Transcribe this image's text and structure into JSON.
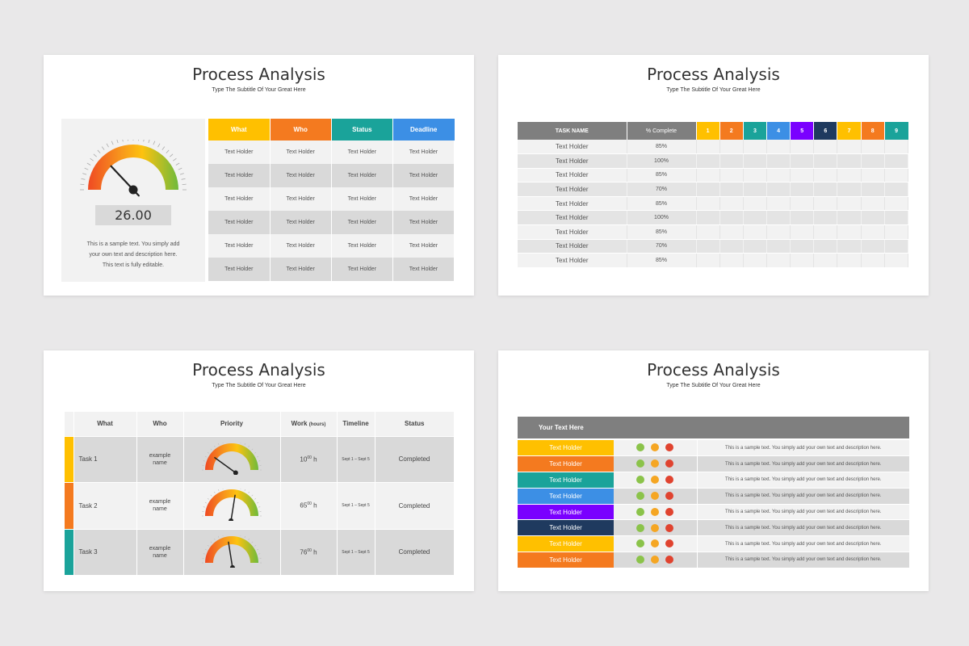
{
  "colors": {
    "yellow": "#ffc000",
    "orange": "#f47a1f",
    "teal": "#1aa39a",
    "blue": "#3c8fe5",
    "purple": "#7a00ff",
    "navy": "#1f3a5f",
    "header_gray": "#7f7f7f",
    "green_dot": "#8bc34a",
    "amber_dot": "#f5a623",
    "red_dot": "#e0432f"
  },
  "slide1": {
    "title": "Process Analysis",
    "subtitle": "Type The Subtitle Of Your Great Here",
    "gauge": {
      "value_label": "26.00",
      "level_percent": 26
    },
    "description": [
      "This is a sample text. You simply add",
      "your own text and description here.",
      "This text is fully editable."
    ],
    "table": {
      "headers": [
        "What",
        "Who",
        "Status",
        "Deadline"
      ],
      "rows": [
        [
          "Text Holder",
          "Text Holder",
          "Text Holder",
          "Text Holder"
        ],
        [
          "Text Holder",
          "Text Holder",
          "Text Holder",
          "Text Holder"
        ],
        [
          "Text Holder",
          "Text Holder",
          "Text Holder",
          "Text Holder"
        ],
        [
          "Text Holder",
          "Text Holder",
          "Text Holder",
          "Text Holder"
        ],
        [
          "Text Holder",
          "Text Holder",
          "Text Holder",
          "Text Holder"
        ],
        [
          "Text Holder",
          "Text Holder",
          "Text Holder",
          "Text Holder"
        ]
      ]
    }
  },
  "slide2": {
    "title": "Process Analysis",
    "subtitle": "Type The Subtitle Of Your Great Here",
    "headers": {
      "task": "TASK NAME",
      "complete": "% Complete",
      "numbers": [
        "1",
        "2",
        "3",
        "4",
        "5",
        "6",
        "7",
        "8",
        "9"
      ]
    },
    "rows": [
      {
        "name": "Text Holder",
        "pct": "85%"
      },
      {
        "name": "Text Holder",
        "pct": "100%"
      },
      {
        "name": "Text Holder",
        "pct": "85%"
      },
      {
        "name": "Text Holder",
        "pct": "70%"
      },
      {
        "name": "Text Holder",
        "pct": "85%"
      },
      {
        "name": "Text Holder",
        "pct": "100%"
      },
      {
        "name": "Text Holder",
        "pct": "85%"
      },
      {
        "name": "Text Holder",
        "pct": "70%"
      },
      {
        "name": "Text Holder",
        "pct": "85%"
      }
    ]
  },
  "slide3": {
    "title": "Process Analysis",
    "subtitle": "Type The Subtitle Of Your Great Here",
    "headers": {
      "what": "What",
      "who": "Who",
      "priority": "Priority",
      "work": "Work",
      "work_unit": "(hours)",
      "timeline": "Timeline",
      "status": "Status"
    },
    "rows": [
      {
        "task": "Task 1",
        "who": [
          "example",
          "name"
        ],
        "priority_percent": 20,
        "work": "10",
        "work_sup": "00",
        "work_unit": "h",
        "timeline": "Sept 1 – Sept 5",
        "status": "Completed"
      },
      {
        "task": "Task 2",
        "who": [
          "example",
          "name"
        ],
        "priority_percent": 55,
        "work": "65",
        "work_sup": "00",
        "work_unit": "h",
        "timeline": "Sept 1 – Sept 5",
        "status": "Completed"
      },
      {
        "task": "Task 3",
        "who": [
          "example",
          "name"
        ],
        "priority_percent": 45,
        "work": "76",
        "work_sup": "00",
        "work_unit": "h",
        "timeline": "Sept 1 – Sept 5",
        "status": "Completed"
      }
    ]
  },
  "slide4": {
    "title": "Process Analysis",
    "subtitle": "Type The Subtitle Of Your Great Here",
    "header": "Your Text Here",
    "rows": [
      {
        "label": "Text Holder",
        "desc": "This is a sample text. You simply add your own text and description here."
      },
      {
        "label": "Text Holder",
        "desc": "This is a sample text. You simply add your own text and description here."
      },
      {
        "label": "Text Holder",
        "desc": "This is a sample text. You simply add your own text and description here."
      },
      {
        "label": "Text Holder",
        "desc": "This is a sample text. You simply add your own text and description here."
      },
      {
        "label": "Text Holder",
        "desc": "This is a sample text. You simply add your own text and description here."
      },
      {
        "label": "Text Holder",
        "desc": "This is a sample text. You simply add your own text and description here."
      },
      {
        "label": "Text Holder",
        "desc": "This is a sample text. You simply add your own text and description here."
      },
      {
        "label": "Text Holder",
        "desc": "This is a sample text. You simply add your own text and description here."
      }
    ]
  }
}
